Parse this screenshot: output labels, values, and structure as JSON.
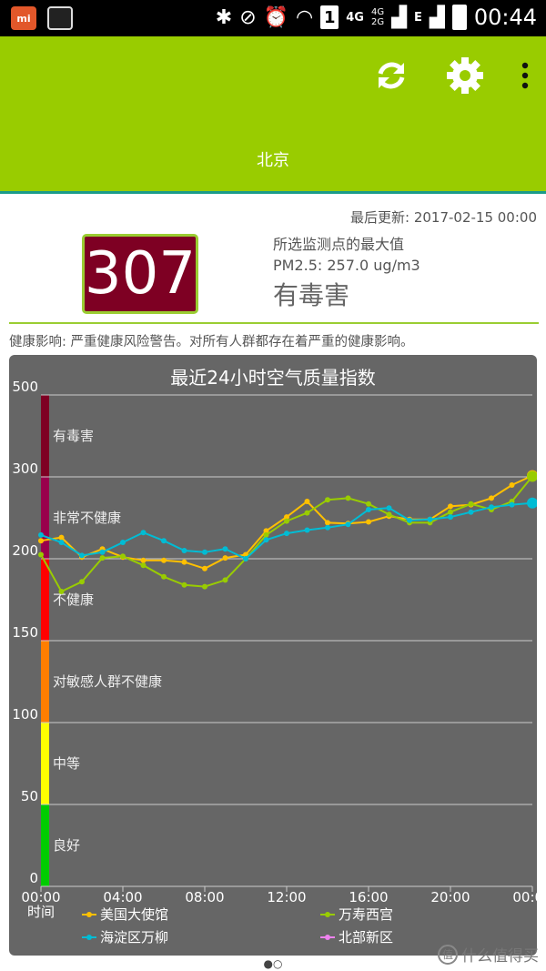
{
  "status_bar": {
    "app_badge": "mi",
    "sim_slot": "1",
    "net_a": "4G",
    "net_b_top": "4G",
    "net_b_bottom": "2G",
    "net_c": "E",
    "time": "00:44"
  },
  "app_bar": {
    "city": "北京",
    "icons": [
      "refresh-icon",
      "gear-icon",
      "overflow-menu-icon"
    ]
  },
  "summary": {
    "last_updated": "最后更新: 2017-02-15 00:00",
    "aqi": "307",
    "aqi_color": "#7e0023",
    "max_label": "所选监测点的最大值",
    "pm25": "PM2.5: 257.0 ug/m3",
    "level": "有毒害",
    "health": "健康影响: 严重健康风险警告。对所有人群都存在着严重的健康影响。"
  },
  "chart_data": {
    "type": "line",
    "title": "最近24小时空气质量指数",
    "xlabel": "时间",
    "x_ticks": [
      "00:00",
      "04:00",
      "08:00",
      "12:00",
      "16:00",
      "20:00",
      "00:00"
    ],
    "y_ticks": [
      "0",
      "50",
      "100",
      "150",
      "200",
      "300",
      "500"
    ],
    "y_scale": "AQI piecewise (0-50-100-150-200-300-500, equal bands)",
    "bands": [
      {
        "label": "良好",
        "from": 0,
        "to": 50,
        "color": "#00cc00"
      },
      {
        "label": "中等",
        "from": 50,
        "to": 100,
        "color": "#ffff00"
      },
      {
        "label": "对敏感人群不健康",
        "from": 100,
        "to": 150,
        "color": "#ff7e00"
      },
      {
        "label": "不健康",
        "from": 150,
        "to": 200,
        "color": "#ff0000"
      },
      {
        "label": "非常不健康",
        "from": 200,
        "to": 300,
        "color": "#99004c"
      },
      {
        "label": "有毒害",
        "from": 300,
        "to": 500,
        "color": "#7e0023"
      }
    ],
    "hours": [
      0,
      1,
      2,
      3,
      4,
      5,
      6,
      7,
      8,
      9,
      10,
      11,
      12,
      13,
      14,
      15,
      16,
      17,
      18,
      19,
      20,
      21,
      22,
      23,
      24
    ],
    "series": [
      {
        "name": "美国大使馆",
        "color": "#ffc000",
        "values": [
          222,
          226,
          202,
          212,
          202,
          199,
          199,
          198,
          194,
          201,
          205,
          234,
          251,
          270,
          244,
          243,
          245,
          252,
          248,
          248,
          264,
          266,
          274,
          290,
          303
        ]
      },
      {
        "name": "万寿西宫",
        "color": "#99cc00",
        "values": [
          205,
          180,
          186,
          201,
          203,
          196,
          189,
          184,
          183,
          187,
          200,
          229,
          246,
          256,
          272,
          274,
          267,
          254,
          244,
          244,
          257,
          267,
          260,
          270,
          301
        ]
      },
      {
        "name": "海淀区万柳",
        "color": "#00bcd4",
        "values": [
          229,
          220,
          204,
          208,
          220,
          232,
          222,
          210,
          208,
          212,
          200,
          223,
          231,
          235,
          238,
          242,
          260,
          262,
          247,
          248,
          251,
          257,
          263,
          266,
          268
        ]
      },
      {
        "name": "北部新区",
        "color": "#ee82ee",
        "values": []
      }
    ]
  }
}
